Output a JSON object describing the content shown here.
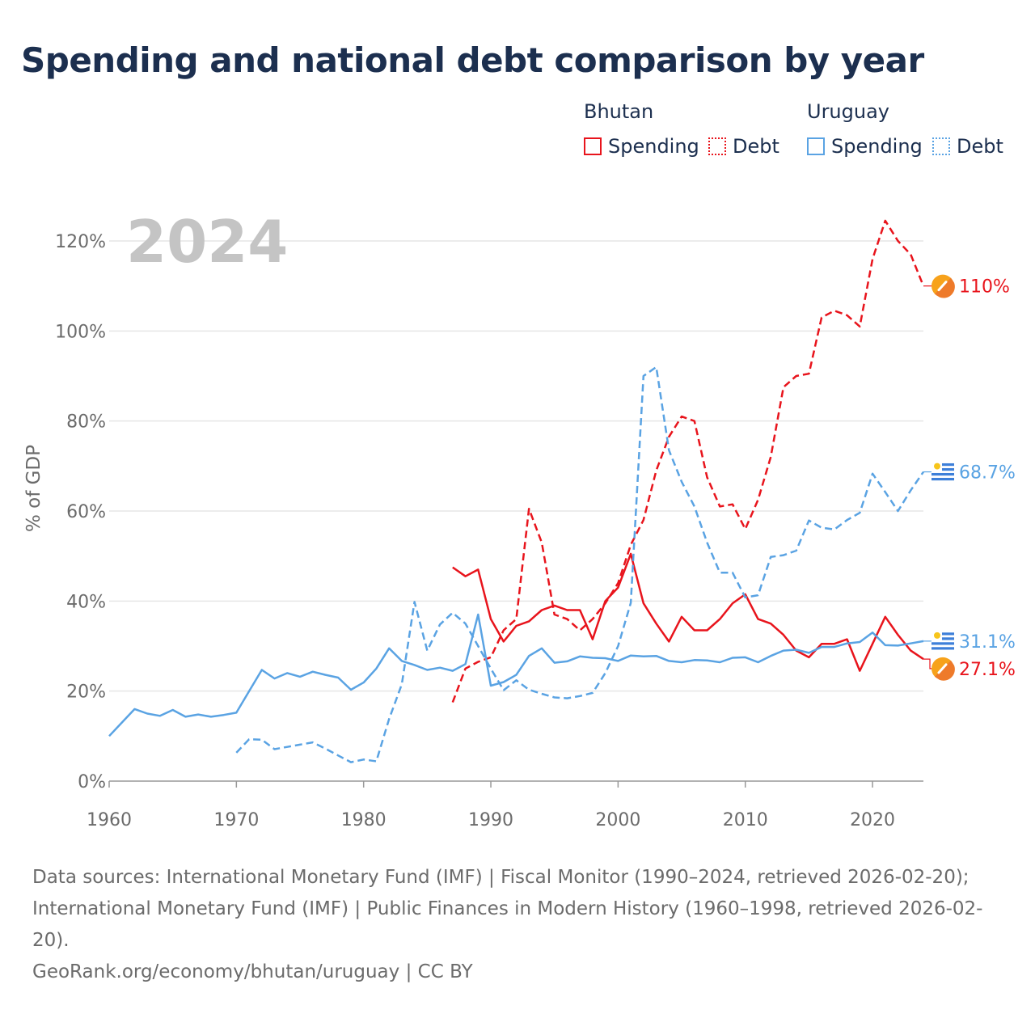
{
  "title": "Spending and national debt comparison by year",
  "legend": {
    "bhutan": {
      "country": "Bhutan",
      "spending": "Spending",
      "debt": "Debt"
    },
    "uruguay": {
      "country": "Uruguay",
      "spending": "Spending",
      "debt": "Debt"
    }
  },
  "sources": {
    "line1": "Data sources: International Monetary Fund (IMF) | Fiscal Monitor (1990–2024, retrieved 2026-02-20); International Monetary Fund (IMF) | Public Finances in Modern History (1960–1998, retrieved 2026-02-20).",
    "line2": "GeoRank.org/economy/bhutan/uruguay | CC BY"
  },
  "colors": {
    "bhutan": "#e8141c",
    "uruguay": "#5aa3e3",
    "title": "#1c2f4f",
    "grid": "#e6e6e6",
    "axis_text": "#6b6b6b",
    "year_watermark": "#c4c4c4"
  },
  "chart_data": {
    "type": "line",
    "year_watermark": "2024",
    "ylabel": "% of GDP",
    "xlim": [
      1960,
      2024
    ],
    "ylim": [
      0,
      120
    ],
    "xticks": [
      1960,
      1970,
      1980,
      1990,
      2000,
      2010,
      2020
    ],
    "yticks": [
      0,
      20,
      40,
      60,
      80,
      100,
      120
    ],
    "ytick_labels": [
      "0%",
      "20%",
      "40%",
      "60%",
      "80%",
      "100%",
      "120%"
    ],
    "series": [
      {
        "name": "Bhutan Spending",
        "country": "bhutan",
        "style": "solid",
        "end_label": "27.1%",
        "x": [
          1987,
          1988,
          1989,
          1990,
          1991,
          1992,
          1993,
          1994,
          1995,
          1996,
          1997,
          1998,
          1999,
          2000,
          2001,
          2002,
          2003,
          2004,
          2005,
          2006,
          2007,
          2008,
          2009,
          2010,
          2011,
          2012,
          2013,
          2014,
          2015,
          2016,
          2017,
          2018,
          2019,
          2020,
          2021,
          2022,
          2023,
          2024
        ],
        "values": [
          47.5,
          45.5,
          47,
          36,
          31,
          34.5,
          35.5,
          38,
          39,
          38,
          38,
          31.5,
          40,
          43,
          50.5,
          39.5,
          35,
          31,
          36.5,
          33.5,
          33.5,
          36,
          39.5,
          41.5,
          36,
          35,
          32.5,
          29,
          27.5,
          30.5,
          30.5,
          31.5,
          24.5,
          30.5,
          36.5,
          32.5,
          29,
          27.1
        ]
      },
      {
        "name": "Bhutan Debt",
        "country": "bhutan",
        "style": "dashed",
        "end_label": "110%",
        "x": [
          1987,
          1988,
          1989,
          1990,
          1991,
          1992,
          1993,
          1994,
          1995,
          1996,
          1997,
          1998,
          1999,
          2000,
          2001,
          2002,
          2003,
          2004,
          2005,
          2006,
          2007,
          2008,
          2009,
          2010,
          2011,
          2012,
          2013,
          2014,
          2015,
          2016,
          2017,
          2018,
          2019,
          2020,
          2021,
          2022,
          2023,
          2024
        ],
        "values": [
          17.5,
          25,
          26.5,
          27.5,
          33.5,
          36,
          60.5,
          53,
          37,
          36,
          33.5,
          36,
          39.5,
          44,
          52.5,
          58,
          69,
          76.5,
          81,
          80,
          67.5,
          61,
          61.5,
          56,
          62.5,
          72,
          87.5,
          90,
          90.5,
          103,
          104.5,
          103.5,
          101,
          116,
          124.5,
          120,
          117,
          110
        ]
      },
      {
        "name": "Uruguay Spending",
        "country": "uruguay",
        "style": "solid",
        "end_label": "31.1%",
        "x": [
          1960,
          1961,
          1962,
          1963,
          1964,
          1965,
          1966,
          1967,
          1968,
          1969,
          1970,
          1971,
          1972,
          1973,
          1974,
          1975,
          1976,
          1977,
          1978,
          1979,
          1980,
          1981,
          1982,
          1983,
          1984,
          1985,
          1986,
          1987,
          1988,
          1989,
          1990,
          1991,
          1992,
          1993,
          1994,
          1995,
          1996,
          1997,
          1998,
          1999,
          2000,
          2001,
          2002,
          2003,
          2004,
          2005,
          2006,
          2007,
          2008,
          2009,
          2010,
          2011,
          2012,
          2013,
          2014,
          2015,
          2016,
          2017,
          2018,
          2019,
          2020,
          2021,
          2022,
          2023,
          2024
        ],
        "values": [
          10,
          13,
          16,
          15,
          14.5,
          15.8,
          14.3,
          14.8,
          14.3,
          14.7,
          15.2,
          20,
          24.7,
          22.8,
          24,
          23.2,
          24.3,
          23.6,
          23,
          20.3,
          21.9,
          25,
          29.5,
          26.7,
          25.8,
          24.7,
          25.2,
          24.5,
          26,
          37,
          21.2,
          22,
          23.6,
          27.8,
          29.5,
          26.3,
          26.6,
          27.7,
          27.4,
          27.3,
          26.7,
          27.9,
          27.7,
          27.8,
          26.7,
          26.4,
          26.9,
          26.8,
          26.4,
          27.4,
          27.5,
          26.4,
          27.8,
          29,
          29.2,
          28.5,
          29.8,
          29.8,
          30.6,
          30.9,
          33,
          30.2,
          30.1,
          30.6,
          31.1
        ]
      },
      {
        "name": "Uruguay Debt",
        "country": "uruguay",
        "style": "dashed",
        "end_label": "68.7%",
        "x": [
          1970,
          1971,
          1972,
          1973,
          1974,
          1975,
          1976,
          1977,
          1978,
          1979,
          1980,
          1981,
          1982,
          1983,
          1984,
          1985,
          1986,
          1987,
          1988,
          1989,
          1990,
          1991,
          1992,
          1993,
          1994,
          1995,
          1996,
          1997,
          1998,
          1999,
          2000,
          2001,
          2002,
          2003,
          2004,
          2005,
          2006,
          2007,
          2008,
          2009,
          2010,
          2011,
          2012,
          2013,
          2014,
          2015,
          2016,
          2017,
          2018,
          2019,
          2020,
          2021,
          2022,
          2023,
          2024
        ],
        "values": [
          6.3,
          9.3,
          9.2,
          7.1,
          7.6,
          8.1,
          8.6,
          7.2,
          5.7,
          4.2,
          4.8,
          4.4,
          13.8,
          21.5,
          39.8,
          29,
          34.8,
          37.4,
          35,
          30,
          25,
          20.2,
          22.4,
          20.3,
          19.4,
          18.6,
          18.4,
          18.9,
          19.6,
          24,
          30,
          39.6,
          90,
          92,
          73.5,
          66.5,
          61,
          53,
          46.3,
          46.3,
          40.8,
          41.3,
          49.8,
          50.2,
          51.2,
          57.9,
          56.3,
          55.9,
          58,
          59.6,
          68.3,
          64.2,
          60,
          64.6,
          68.7
        ]
      }
    ]
  }
}
